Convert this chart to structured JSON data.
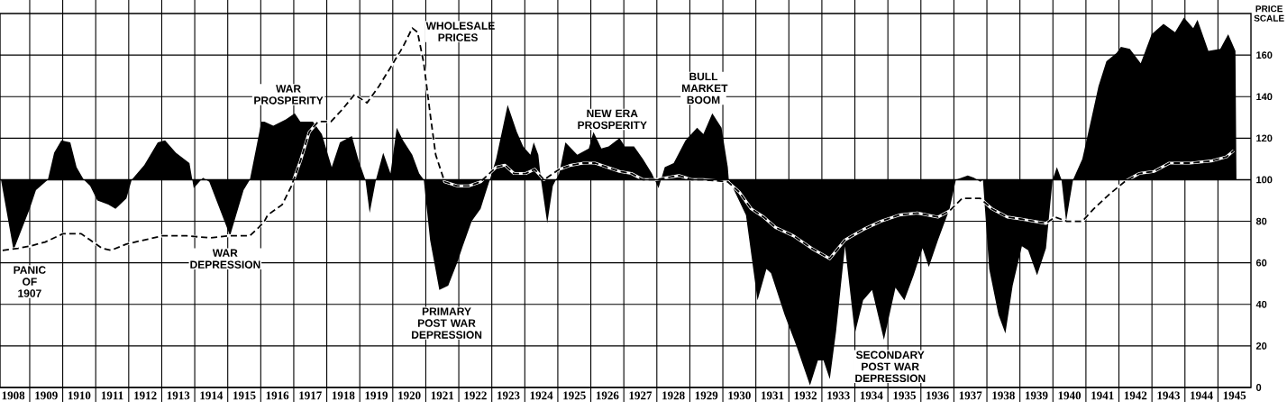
{
  "chart_data": {
    "type": "area",
    "ylabel": "PRICE SCALE",
    "xlim": [
      1908.1,
      1946
    ],
    "ylim": [
      0,
      180
    ],
    "yticks": [
      0,
      20,
      40,
      60,
      80,
      100,
      120,
      140,
      160
    ],
    "xticks": [
      {
        "value": 1908.5,
        "label": "1908"
      },
      {
        "value": 1909.5,
        "label": "1909"
      },
      {
        "value": 1910.5,
        "label": "1910"
      },
      {
        "value": 1911.5,
        "label": "1911"
      },
      {
        "value": 1912.5,
        "label": "1912"
      },
      {
        "value": 1913.5,
        "label": "1913"
      },
      {
        "value": 1914.5,
        "label": "1914"
      },
      {
        "value": 1915.5,
        "label": "1915"
      },
      {
        "value": 1916.5,
        "label": "1916"
      },
      {
        "value": 1917.5,
        "label": "1917"
      },
      {
        "value": 1918.5,
        "label": "1918"
      },
      {
        "value": 1919.5,
        "label": "1919"
      },
      {
        "value": 1920.5,
        "label": "1920"
      },
      {
        "value": 1921.5,
        "label": "1921"
      },
      {
        "value": 1922.5,
        "label": "1922"
      },
      {
        "value": 1923.5,
        "label": "1923"
      },
      {
        "value": 1924.5,
        "label": "1924"
      },
      {
        "value": 1925.5,
        "label": "1925"
      },
      {
        "value": 1926.5,
        "label": "1926"
      },
      {
        "value": 1927.5,
        "label": "1927"
      },
      {
        "value": 1928.5,
        "label": "1928"
      },
      {
        "value": 1929.5,
        "label": "1929"
      },
      {
        "value": 1930.5,
        "label": "1930"
      },
      {
        "value": 1931.5,
        "label": "1931"
      },
      {
        "value": 1932.5,
        "label": "1932"
      },
      {
        "value": 1933.5,
        "label": "1933"
      },
      {
        "value": 1934.5,
        "label": "1934"
      },
      {
        "value": 1935.5,
        "label": "1935"
      },
      {
        "value": 1936.5,
        "label": "1936"
      },
      {
        "value": 1937.5,
        "label": "1937"
      },
      {
        "value": 1938.5,
        "label": "1938"
      },
      {
        "value": 1939.5,
        "label": "1939"
      },
      {
        "value": 1940.5,
        "label": "1940"
      },
      {
        "value": 1941.5,
        "label": "1941"
      },
      {
        "value": 1942.5,
        "label": "1942"
      },
      {
        "value": 1943.5,
        "label": "1943"
      },
      {
        "value": 1944.5,
        "label": "1944"
      },
      {
        "value": 1945.5,
        "label": "1945"
      },
      {
        "value": 1909,
        "label": null
      },
      {
        "value": 1910,
        "label": null
      },
      {
        "value": 1911,
        "label": null
      },
      {
        "value": 1912,
        "label": null
      },
      {
        "value": 1913,
        "label": null
      },
      {
        "value": 1914,
        "label": null
      },
      {
        "value": 1915,
        "label": null
      },
      {
        "value": 1916,
        "label": null
      },
      {
        "value": 1917,
        "label": null
      },
      {
        "value": 1918,
        "label": null
      },
      {
        "value": 1919,
        "label": null
      },
      {
        "value": 1920,
        "label": null
      },
      {
        "value": 1921,
        "label": null
      },
      {
        "value": 1922,
        "label": null
      },
      {
        "value": 1923,
        "label": null
      },
      {
        "value": 1924,
        "label": null
      },
      {
        "value": 1925,
        "label": null
      },
      {
        "value": 1926,
        "label": null
      },
      {
        "value": 1927,
        "label": null
      },
      {
        "value": 1928,
        "label": null
      },
      {
        "value": 1929,
        "label": null
      },
      {
        "value": 1930,
        "label": null
      },
      {
        "value": 1931,
        "label": null
      },
      {
        "value": 1932,
        "label": null
      },
      {
        "value": 1933,
        "label": null
      },
      {
        "value": 1934,
        "label": null
      },
      {
        "value": 1935,
        "label": null
      },
      {
        "value": 1936,
        "label": null
      },
      {
        "value": 1937,
        "label": null
      },
      {
        "value": 1938,
        "label": null
      },
      {
        "value": 1939,
        "label": null
      },
      {
        "value": 1940,
        "label": null
      },
      {
        "value": 1941,
        "label": null
      },
      {
        "value": 1942,
        "label": null
      },
      {
        "value": 1943,
        "label": null
      },
      {
        "value": 1944,
        "label": null
      },
      {
        "value": 1945,
        "label": null
      }
    ],
    "grid": true,
    "ref_lines": [
      {
        "axis": "y",
        "value": 100
      }
    ],
    "series": [
      {
        "color": "#000000",
        "x": [
          1908.13,
          1908.51,
          1909.0,
          1909.19,
          1909.55,
          1909.74,
          1909.96,
          1910.23,
          1910.42,
          1910.64,
          1910.83,
          1911.05,
          1911.38,
          1911.6,
          1911.93,
          1912.09,
          1912.47,
          1912.88,
          1913.1,
          1913.43,
          1913.84,
          1913.97,
          1914.25,
          1914.44,
          1915.07,
          1915.48,
          1915.67,
          1916.02,
          1916.11,
          1916.38,
          1916.76,
          1917.03,
          1917.2,
          1917.58,
          1917.85,
          1918.15,
          1918.4,
          1918.76,
          1918.97,
          1919.17,
          1919.3,
          1919.49,
          1919.71,
          1919.93,
          1920.12,
          1920.31,
          1920.59,
          1920.8,
          1920.94,
          1921.13,
          1921.41,
          1921.68,
          1921.95,
          1922.12,
          1922.39,
          1922.66,
          1922.8,
          1922.94,
          1923.13,
          1923.48,
          1923.76,
          1923.95,
          1924.17,
          1924.27,
          1924.41,
          1924.49,
          1924.68,
          1924.85,
          1925.04,
          1925.23,
          1925.59,
          1925.94,
          1926.08,
          1926.32,
          1926.54,
          1926.87,
          1927.03,
          1927.31,
          1927.58,
          1927.85,
          1928.05,
          1928.24,
          1928.51,
          1928.87,
          1929.22,
          1929.41,
          1929.68,
          1929.96,
          1930.15,
          1930.18,
          1930.31,
          1930.7,
          1931.05,
          1931.32,
          1931.46,
          1931.87,
          1932.23,
          1932.64,
          1932.88,
          1933.05,
          1933.24,
          1933.43,
          1933.7,
          1934.0,
          1934.25,
          1934.52,
          1934.88,
          1935.23,
          1935.5,
          1935.78,
          1936.05,
          1936.24,
          1936.52,
          1936.87,
          1937.06,
          1937.42,
          1937.61,
          1937.8,
          1937.88,
          1938.07,
          1938.35,
          1938.56,
          1938.78,
          1939.06,
          1939.25,
          1939.52,
          1939.79,
          1939.99,
          1940.12,
          1940.26,
          1940.4,
          1940.61,
          1940.89,
          1941.16,
          1941.38,
          1941.62,
          1941.93,
          1942.06,
          1942.33,
          1942.66,
          1942.99,
          1943.35,
          1943.7,
          1943.97,
          1944.25,
          1944.38,
          1944.71,
          1945.07,
          1945.31,
          1945.53,
          1945.56
        ],
        "values": [
          100,
          66,
          86,
          95,
          100,
          113,
          119,
          118,
          106,
          100,
          97,
          90,
          88,
          86,
          91,
          100,
          107,
          118,
          119,
          113,
          108,
          96,
          101,
          99,
          73,
          95,
          100,
          128,
          128,
          126,
          129,
          132,
          128,
          128,
          122,
          106,
          118,
          121,
          109,
          100,
          84,
          100,
          113,
          103,
          125,
          119,
          112,
          103,
          100,
          71,
          47,
          49,
          60,
          68,
          80,
          86,
          93,
          100,
          110,
          136,
          123,
          116,
          112,
          118,
          112,
          100,
          79,
          97,
          103,
          118,
          112,
          115,
          123,
          115,
          116,
          120,
          116,
          116,
          110,
          103,
          96,
          106,
          108,
          119,
          125,
          122,
          132,
          125,
          106,
          100,
          96,
          83,
          42,
          57,
          55,
          35,
          20,
          1,
          13,
          13,
          4,
          27,
          68,
          26,
          42,
          47,
          23,
          48,
          42,
          54,
          67,
          58,
          71,
          86,
          100,
          102,
          101,
          99,
          100,
          57,
          35,
          26,
          49,
          68,
          66,
          54,
          67,
          100,
          106,
          100,
          80,
          100,
          110,
          129,
          145,
          157,
          161,
          164,
          163,
          156,
          170,
          175,
          171,
          178,
          173,
          177,
          162,
          163,
          170,
          162,
          100
        ]
      },
      {
        "type": "line",
        "name": "WHOLESALE PRICES",
        "color": "#000000",
        "line_style": "dashed",
        "x": [
          1908.18,
          1908.65,
          1909.0,
          1909.47,
          1910.01,
          1910.56,
          1910.83,
          1911.19,
          1911.46,
          1911.93,
          1912.47,
          1913.02,
          1913.76,
          1914.47,
          1915.01,
          1915.67,
          1915.94,
          1916.11,
          1916.21,
          1916.65,
          1916.93,
          1917.2,
          1917.47,
          1917.74,
          1918.13,
          1918.48,
          1918.84,
          1919.22,
          1919.58,
          1919.93,
          1920.31,
          1920.59,
          1920.75,
          1920.94,
          1921.13,
          1921.3,
          1921.57,
          1921.95,
          1922.31,
          1922.66,
          1923.13,
          1923.4,
          1923.67,
          1924.03,
          1924.3,
          1924.58,
          1925.04,
          1925.4,
          1925.78,
          1926.13,
          1926.49,
          1926.87,
          1927.23,
          1927.58,
          1927.96,
          1928.32,
          1928.67,
          1929.06,
          1929.41,
          1930.15,
          1930.5,
          1930.86,
          1931.24,
          1931.6,
          1932.14,
          1932.69,
          1933.24,
          1933.7,
          1934.25,
          1934.79,
          1935.34,
          1935.89,
          1936.52,
          1936.87,
          1937.25,
          1937.8,
          1938.15,
          1938.62,
          1939.06,
          1939.79,
          1940.07,
          1940.42,
          1940.89,
          1941.24,
          1941.71,
          1942.17,
          1942.61,
          1943.07,
          1943.53,
          1944.16,
          1944.79,
          1945.26,
          1945.48
        ],
        "values": [
          66,
          67,
          68,
          70,
          74,
          74,
          71,
          67,
          66,
          69,
          71,
          73,
          73,
          72,
          73,
          73,
          77,
          80,
          83,
          88,
          97,
          109,
          123,
          128,
          128,
          134,
          141,
          137,
          145,
          154,
          164,
          173,
          171,
          156,
          132,
          112,
          99,
          97,
          97,
          99,
          106,
          107,
          103,
          103,
          105,
          100,
          105,
          107,
          108,
          108,
          106,
          104,
          103,
          100,
          100,
          101,
          102,
          100,
          100,
          99,
          94,
          86,
          82,
          77,
          73,
          67,
          62,
          71,
          76,
          80,
          83,
          84,
          82,
          85,
          91,
          91,
          86,
          82,
          81,
          79,
          82,
          80,
          80,
          86,
          93,
          99,
          103,
          104,
          108,
          108,
          109,
          111,
          114
        ]
      }
    ],
    "annotations": [
      "PANIC OF 1907",
      "WAR DEPRESSION",
      "WAR PROSPERITY",
      "PRIMARY POST WAR DEPRESSION",
      "NEW ERA PROSPERITY",
      "BULL MARKET BOOM",
      "SECONDARY POST WAR DEPRESSION"
    ]
  }
}
